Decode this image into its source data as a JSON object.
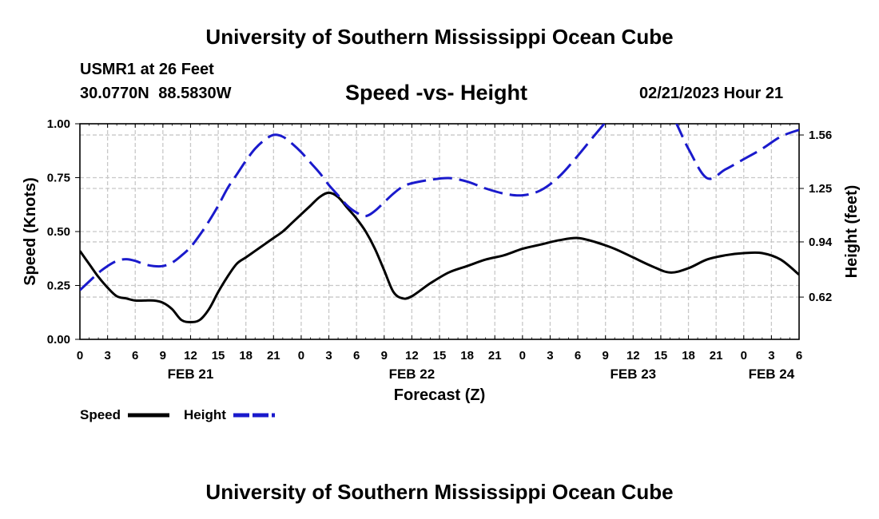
{
  "header": {
    "title": "University of Southern Mississippi Ocean Cube",
    "station": "USMR1 at 26 Feet",
    "coords": "30.0770N  88.5830W",
    "subtitle": "Speed -vs- Height",
    "datetime": "02/21/2023 Hour 21"
  },
  "footer": {
    "title": "University of Southern Mississippi Ocean Cube"
  },
  "chart_data": {
    "type": "line",
    "title": "Speed -vs- Height",
    "xlabel": "Forecast (Z)",
    "ylabel": "Speed (Knots)",
    "y2label": "Height (feet)",
    "x_hours": [
      0,
      78
    ],
    "x_tick_labels": [
      "0",
      "3",
      "6",
      "9",
      "12",
      "15",
      "18",
      "21",
      "0",
      "3",
      "6",
      "9",
      "12",
      "15",
      "18",
      "21",
      "0",
      "3",
      "6",
      "9",
      "12",
      "15",
      "18",
      "21",
      "0",
      "3",
      "6"
    ],
    "date_labels": [
      {
        "label": "FEB 21",
        "hour": 12
      },
      {
        "label": "FEB 22",
        "hour": 36
      },
      {
        "label": "FEB 23",
        "hour": 60
      },
      {
        "label": "FEB 24",
        "hour": 75
      }
    ],
    "ylim": [
      0,
      1
    ],
    "y_ticks": [
      {
        "value": 0,
        "label": "0.00"
      },
      {
        "value": 0.25,
        "label": "0.25"
      },
      {
        "value": 0.5,
        "label": "0.50"
      },
      {
        "value": 0.75,
        "label": "0.75"
      },
      {
        "value": 1,
        "label": "1.00"
      }
    ],
    "y2lim": [
      0.375,
      1.625
    ],
    "y2_ticks": [
      {
        "value": 0.62,
        "label": "0.62"
      },
      {
        "value": 0.94,
        "label": "0.94"
      },
      {
        "value": 1.25,
        "label": "1.25"
      },
      {
        "value": 1.56,
        "label": "1.56"
      }
    ],
    "grid": true,
    "legend_position": "bottom-left",
    "series": [
      {
        "name": "Speed",
        "axis": "left",
        "color": "#000000",
        "style": "solid",
        "x": [
          0,
          1,
          2,
          3,
          4,
          5,
          6,
          7,
          8,
          9,
          10,
          11,
          12,
          13,
          14,
          15,
          16,
          17,
          18,
          19,
          20,
          21,
          22,
          23,
          24,
          25,
          26,
          27,
          28,
          29,
          30,
          31,
          32,
          33,
          34,
          35,
          36,
          38,
          40,
          42,
          44,
          46,
          48,
          50,
          52,
          54,
          56,
          58,
          60,
          62,
          64,
          66,
          68,
          70,
          72,
          74,
          76,
          78
        ],
        "y": [
          0.41,
          0.35,
          0.29,
          0.24,
          0.2,
          0.19,
          0.18,
          0.18,
          0.18,
          0.17,
          0.14,
          0.09,
          0.08,
          0.09,
          0.14,
          0.22,
          0.29,
          0.35,
          0.38,
          0.41,
          0.44,
          0.47,
          0.5,
          0.54,
          0.58,
          0.62,
          0.66,
          0.68,
          0.66,
          0.61,
          0.56,
          0.5,
          0.42,
          0.32,
          0.22,
          0.19,
          0.2,
          0.26,
          0.31,
          0.34,
          0.37,
          0.39,
          0.42,
          0.44,
          0.46,
          0.47,
          0.45,
          0.42,
          0.38,
          0.34,
          0.31,
          0.33,
          0.37,
          0.39,
          0.4,
          0.4,
          0.37,
          0.3
        ]
      },
      {
        "name": "Height",
        "axis": "right",
        "color": "#1a1acc",
        "style": "dashed",
        "x": [
          0,
          1,
          2,
          3,
          4,
          5,
          6,
          7,
          8,
          9,
          10,
          11,
          12,
          13,
          14,
          15,
          16,
          17,
          18,
          19,
          20,
          21,
          22,
          23,
          24,
          25,
          26,
          27,
          28,
          29,
          30,
          31,
          32,
          33,
          34,
          35,
          36,
          38,
          40,
          42,
          44,
          46,
          48,
          50,
          52,
          54,
          56,
          58,
          60,
          62,
          64,
          66,
          68,
          70,
          72,
          74,
          76,
          78
        ],
        "y": [
          0.66,
          0.71,
          0.76,
          0.8,
          0.83,
          0.84,
          0.83,
          0.81,
          0.8,
          0.8,
          0.82,
          0.86,
          0.91,
          0.98,
          1.06,
          1.15,
          1.25,
          1.33,
          1.41,
          1.48,
          1.53,
          1.56,
          1.55,
          1.51,
          1.46,
          1.4,
          1.34,
          1.27,
          1.21,
          1.15,
          1.11,
          1.09,
          1.12,
          1.17,
          1.22,
          1.26,
          1.28,
          1.3,
          1.31,
          1.29,
          1.25,
          1.22,
          1.21,
          1.24,
          1.32,
          1.44,
          1.57,
          1.69,
          1.76,
          1.75,
          1.69,
          1.48,
          1.31,
          1.36,
          1.42,
          1.48,
          1.55,
          1.59
        ]
      }
    ]
  },
  "legend": {
    "speed_label": "Speed",
    "height_label": "Height"
  }
}
